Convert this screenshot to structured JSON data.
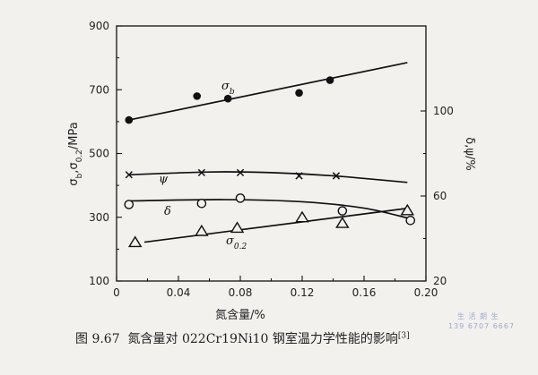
{
  "chart_data": {
    "type": "line",
    "xlabel": "氮含量/%",
    "ylabel_left": "σb,σ0.2/MPa",
    "ylabel_right": "δ,ψ/%",
    "x_ticks": [
      "0",
      "0.04",
      "0.08",
      "0.12",
      "0.16",
      "0.20"
    ],
    "y_left_ticks": [
      "100",
      "300",
      "500",
      "700",
      "900"
    ],
    "y_right_ticks": [
      "20",
      "60",
      "100"
    ],
    "xlim": [
      0,
      0.2
    ],
    "ylim_left": [
      100,
      900
    ],
    "ylim_right": [
      20,
      140
    ],
    "grid": false,
    "series": [
      {
        "name": "σb",
        "axis": "left",
        "marker": "filled-circle",
        "points": [
          [
            0.008,
            605
          ],
          [
            0.052,
            680
          ],
          [
            0.072,
            672
          ],
          [
            0.118,
            690
          ],
          [
            0.138,
            730
          ]
        ],
        "fit": [
          [
            0.008,
            605
          ],
          [
            0.188,
            785
          ]
        ]
      },
      {
        "name": "σ0.2",
        "axis": "left",
        "marker": "triangle",
        "points": [
          [
            0.012,
            220
          ],
          [
            0.055,
            255
          ],
          [
            0.078,
            265
          ],
          [
            0.12,
            298
          ],
          [
            0.146,
            280
          ],
          [
            0.188,
            320
          ]
        ],
        "fit": [
          [
            0.018,
            222
          ],
          [
            0.188,
            328
          ]
        ]
      },
      {
        "name": "ψ",
        "axis": "right",
        "marker": "x",
        "points": [
          [
            0.008,
            70.0
          ],
          [
            0.055,
            71.0
          ],
          [
            0.08,
            71.0
          ],
          [
            0.118,
            69.5
          ],
          [
            0.142,
            69.5
          ]
        ],
        "fit": [
          [
            0.008,
            70.0
          ],
          [
            0.06,
            71.3
          ],
          [
            0.1,
            71.0
          ],
          [
            0.14,
            69.5
          ],
          [
            0.188,
            66.4
          ]
        ]
      },
      {
        "name": "δ",
        "axis": "right",
        "marker": "open-circle",
        "points": [
          [
            0.008,
            56.0
          ],
          [
            0.055,
            56.5
          ],
          [
            0.08,
            59.0
          ],
          [
            0.146,
            53.0
          ],
          [
            0.19,
            48.5
          ]
        ],
        "fit": [
          [
            0.008,
            57.7
          ],
          [
            0.07,
            58.3
          ],
          [
            0.12,
            57.3
          ],
          [
            0.16,
            54.3
          ],
          [
            0.19,
            49.3
          ]
        ]
      }
    ]
  },
  "series_labels": {
    "sigma_b": {
      "sym": "σ",
      "sub": "b"
    },
    "psi": {
      "sym": "ψ",
      "sub": ""
    },
    "delta": {
      "sym": "δ",
      "sub": ""
    },
    "sigma02": {
      "sym": "σ",
      "sub": "0.2"
    }
  },
  "caption": {
    "number": "图 9.67",
    "text": "氮含量对 022Cr19Ni10 钢室温力学性能的影响",
    "ref": "[3]"
  },
  "watermark": {
    "line1": "生 活 朗 生",
    "line2": "139 6707 6667"
  }
}
